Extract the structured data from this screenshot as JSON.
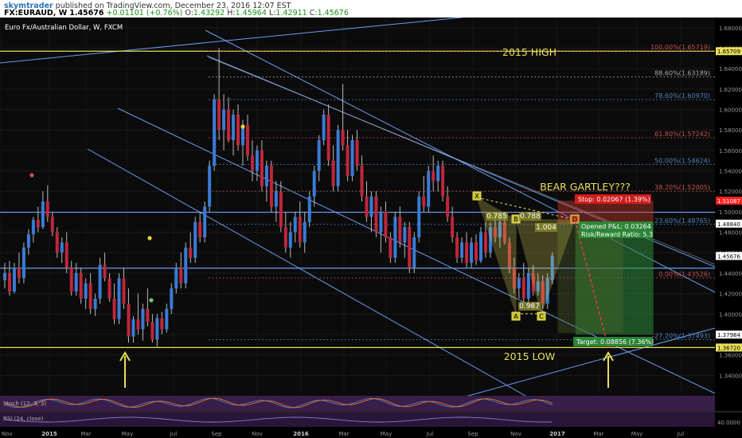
{
  "header": {
    "author": "skymtrader",
    "published_text": "published on TradingView.com, December 23, 2016 12:07 EST",
    "symbol": "FX:EURAUD, W",
    "last_price": "1.45676",
    "change": "+0.01101 (+0.76%)",
    "ohlc": {
      "o_label": "O:",
      "o": "1.43292",
      "h_label": "H:",
      "h": "1.45964",
      "l_label": "L:",
      "l": "1.42911",
      "c_label": "C:",
      "c": "1.45676"
    }
  },
  "chart_data": {
    "type": "candlestick",
    "title": "Euro Fx/Australian Dollar, W, FXCM",
    "x_tick_labels": [
      "Nov",
      "2015",
      "Mar",
      "May",
      "Jul",
      "Sep",
      "Nov",
      "2016",
      "Mar",
      "May",
      "Jul",
      "Sep",
      "Nov",
      "2017",
      "Mar",
      "May",
      "Jul"
    ],
    "y_tick_labels": [
      "1.68000",
      "1.66000",
      "1.64000",
      "1.62000",
      "1.60000",
      "1.58000",
      "1.56000",
      "1.54000",
      "1.52000",
      "1.50000",
      "1.48000",
      "1.46000",
      "1.44000",
      "1.42000",
      "1.40000",
      "1.38000",
      "1.36000",
      "1.34000"
    ],
    "ylim": [
      1.32,
      1.69
    ],
    "price_tags": [
      {
        "value": 1.65709,
        "label": "1.65709",
        "color": "#e8e05a"
      },
      {
        "value": 1.51087,
        "label": "1.51087",
        "color": "#ff2020"
      },
      {
        "value": 1.4884,
        "label": "1.48840",
        "color": "#ffffff"
      },
      {
        "value": 1.45676,
        "label": "1.45676",
        "color": "#ffffff"
      },
      {
        "value": 1.37984,
        "label": "1.37984",
        "color": "#ffffff"
      },
      {
        "value": 1.3672,
        "label": "1.36720",
        "color": "#e8e05a"
      }
    ],
    "fibonacci_levels": [
      {
        "label": "100.00%(1.65719)",
        "value": 1.65719,
        "color": "#c0504d"
      },
      {
        "label": "88.60%(1.63189)",
        "value": 1.63189,
        "color": "#aaaaaa"
      },
      {
        "label": "78.60%(1.60970)",
        "value": 1.6097,
        "color": "#4f81bd"
      },
      {
        "label": "61.80%(1.57242)",
        "value": 1.57242,
        "color": "#c0504d"
      },
      {
        "label": "50.00%(1.54624)",
        "value": 1.54624,
        "color": "#4f81bd"
      },
      {
        "label": "38.20%(1.52005)",
        "value": 1.52005,
        "color": "#c0504d"
      },
      {
        "label": "23.60%(1.48765)",
        "value": 1.48765,
        "color": "#4f81bd"
      },
      {
        "label": "0.00%(1.43526)",
        "value": 1.43526,
        "color": "#c0504d"
      },
      {
        "label": "-27.20%(1.37493)",
        "value": 1.37493,
        "color": "#4f81bd"
      }
    ],
    "horizontal_levels": [
      {
        "value": 1.65709,
        "color": "#e8e05a"
      },
      {
        "value": 1.4995,
        "color": "#6a9cf0"
      },
      {
        "value": 1.4448,
        "color": "#6a9cf0"
      },
      {
        "value": 1.3672,
        "color": "#e8e05a"
      }
    ],
    "annotations": {
      "high_label": "2015 HIGH",
      "low_label": "2015 LOW",
      "pattern_label": "BEAR GARTLEY???",
      "stop_label": "Stop: 0.02067 (1.39%)",
      "open_pl": "Opened P&L: 0.03264",
      "risk_reward": "Risk/Reward Ratio: 5.3",
      "target_label": "Target: 0.08856 (7.36%)",
      "harmonic_points": {
        "x": "X",
        "a": "A",
        "b": "B",
        "c": "C",
        "d": "D"
      },
      "ratios": {
        "xab": "0.785",
        "abc": "0.987",
        "xad": "0.788",
        "bcd": "1.004"
      }
    },
    "candles": [
      {
        "t": 0,
        "o": 1.433,
        "h": 1.45,
        "l": 1.425,
        "c": 1.44
      },
      {
        "t": 1,
        "o": 1.44,
        "h": 1.452,
        "l": 1.418,
        "c": 1.422
      },
      {
        "t": 2,
        "o": 1.422,
        "h": 1.45,
        "l": 1.42,
        "c": 1.445
      },
      {
        "t": 3,
        "o": 1.445,
        "h": 1.46,
        "l": 1.43,
        "c": 1.435
      },
      {
        "t": 4,
        "o": 1.435,
        "h": 1.47,
        "l": 1.43,
        "c": 1.465
      },
      {
        "t": 5,
        "o": 1.465,
        "h": 1.483,
        "l": 1.458,
        "c": 1.478
      },
      {
        "t": 6,
        "o": 1.478,
        "h": 1.495,
        "l": 1.47,
        "c": 1.492
      },
      {
        "t": 7,
        "o": 1.492,
        "h": 1.505,
        "l": 1.48,
        "c": 1.485
      },
      {
        "t": 8,
        "o": 1.485,
        "h": 1.52,
        "l": 1.483,
        "c": 1.51
      },
      {
        "t": 9,
        "o": 1.51,
        "h": 1.526,
        "l": 1.49,
        "c": 1.495
      },
      {
        "t": 10,
        "o": 1.495,
        "h": 1.5,
        "l": 1.476,
        "c": 1.48
      },
      {
        "t": 11,
        "o": 1.48,
        "h": 1.485,
        "l": 1.455,
        "c": 1.46
      },
      {
        "t": 12,
        "o": 1.46,
        "h": 1.475,
        "l": 1.45,
        "c": 1.47
      },
      {
        "t": 13,
        "o": 1.47,
        "h": 1.48,
        "l": 1.44,
        "c": 1.445
      },
      {
        "t": 14,
        "o": 1.445,
        "h": 1.452,
        "l": 1.418,
        "c": 1.422
      },
      {
        "t": 15,
        "o": 1.422,
        "h": 1.45,
        "l": 1.418,
        "c": 1.44
      },
      {
        "t": 16,
        "o": 1.44,
        "h": 1.445,
        "l": 1.41,
        "c": 1.415
      },
      {
        "t": 17,
        "o": 1.415,
        "h": 1.435,
        "l": 1.405,
        "c": 1.43
      },
      {
        "t": 18,
        "o": 1.43,
        "h": 1.44,
        "l": 1.4,
        "c": 1.405
      },
      {
        "t": 19,
        "o": 1.405,
        "h": 1.42,
        "l": 1.398,
        "c": 1.415
      },
      {
        "t": 20,
        "o": 1.415,
        "h": 1.455,
        "l": 1.41,
        "c": 1.448
      },
      {
        "t": 21,
        "o": 1.448,
        "h": 1.46,
        "l": 1.432,
        "c": 1.435
      },
      {
        "t": 22,
        "o": 1.435,
        "h": 1.44,
        "l": 1.412,
        "c": 1.415
      },
      {
        "t": 23,
        "o": 1.415,
        "h": 1.43,
        "l": 1.39,
        "c": 1.395
      },
      {
        "t": 24,
        "o": 1.395,
        "h": 1.44,
        "l": 1.39,
        "c": 1.435
      },
      {
        "t": 25,
        "o": 1.435,
        "h": 1.445,
        "l": 1.405,
        "c": 1.41
      },
      {
        "t": 26,
        "o": 1.41,
        "h": 1.425,
        "l": 1.372,
        "c": 1.378
      },
      {
        "t": 27,
        "o": 1.378,
        "h": 1.398,
        "l": 1.372,
        "c": 1.395
      },
      {
        "t": 28,
        "o": 1.395,
        "h": 1.42,
        "l": 1.38,
        "c": 1.385
      },
      {
        "t": 29,
        "o": 1.385,
        "h": 1.41,
        "l": 1.374,
        "c": 1.405
      },
      {
        "t": 30,
        "o": 1.405,
        "h": 1.425,
        "l": 1.388,
        "c": 1.392
      },
      {
        "t": 31,
        "o": 1.392,
        "h": 1.4,
        "l": 1.372,
        "c": 1.375
      },
      {
        "t": 32,
        "o": 1.375,
        "h": 1.4,
        "l": 1.368,
        "c": 1.396
      },
      {
        "t": 33,
        "o": 1.396,
        "h": 1.402,
        "l": 1.38,
        "c": 1.385
      },
      {
        "t": 34,
        "o": 1.385,
        "h": 1.41,
        "l": 1.382,
        "c": 1.405
      },
      {
        "t": 35,
        "o": 1.405,
        "h": 1.43,
        "l": 1.4,
        "c": 1.425
      },
      {
        "t": 36,
        "o": 1.425,
        "h": 1.45,
        "l": 1.42,
        "c": 1.445
      },
      {
        "t": 37,
        "o": 1.445,
        "h": 1.46,
        "l": 1.425,
        "c": 1.43
      },
      {
        "t": 38,
        "o": 1.43,
        "h": 1.47,
        "l": 1.425,
        "c": 1.465
      },
      {
        "t": 39,
        "o": 1.465,
        "h": 1.48,
        "l": 1.45,
        "c": 1.455
      },
      {
        "t": 40,
        "o": 1.455,
        "h": 1.495,
        "l": 1.45,
        "c": 1.49
      },
      {
        "t": 41,
        "o": 1.49,
        "h": 1.5,
        "l": 1.47,
        "c": 1.475
      },
      {
        "t": 42,
        "o": 1.475,
        "h": 1.51,
        "l": 1.47,
        "c": 1.505
      },
      {
        "t": 43,
        "o": 1.505,
        "h": 1.55,
        "l": 1.5,
        "c": 1.545
      },
      {
        "t": 44,
        "o": 1.545,
        "h": 1.615,
        "l": 1.54,
        "c": 1.61
      },
      {
        "t": 45,
        "o": 1.61,
        "h": 1.66,
        "l": 1.57,
        "c": 1.58
      },
      {
        "t": 46,
        "o": 1.58,
        "h": 1.615,
        "l": 1.56,
        "c": 1.6
      },
      {
        "t": 47,
        "o": 1.6,
        "h": 1.612,
        "l": 1.568,
        "c": 1.57
      },
      {
        "t": 48,
        "o": 1.57,
        "h": 1.6,
        "l": 1.555,
        "c": 1.595
      },
      {
        "t": 49,
        "o": 1.595,
        "h": 1.605,
        "l": 1.56,
        "c": 1.565
      },
      {
        "t": 50,
        "o": 1.565,
        "h": 1.59,
        "l": 1.545,
        "c": 1.585
      },
      {
        "t": 51,
        "o": 1.585,
        "h": 1.595,
        "l": 1.55,
        "c": 1.555
      },
      {
        "t": 52,
        "o": 1.555,
        "h": 1.57,
        "l": 1.53,
        "c": 1.54
      },
      {
        "t": 53,
        "o": 1.54,
        "h": 1.565,
        "l": 1.53,
        "c": 1.56
      },
      {
        "t": 54,
        "o": 1.56,
        "h": 1.57,
        "l": 1.52,
        "c": 1.525
      },
      {
        "t": 55,
        "o": 1.525,
        "h": 1.55,
        "l": 1.51,
        "c": 1.545
      },
      {
        "t": 56,
        "o": 1.545,
        "h": 1.55,
        "l": 1.5,
        "c": 1.505
      },
      {
        "t": 57,
        "o": 1.505,
        "h": 1.53,
        "l": 1.49,
        "c": 1.52
      },
      {
        "t": 58,
        "o": 1.52,
        "h": 1.53,
        "l": 1.48,
        "c": 1.485
      },
      {
        "t": 59,
        "o": 1.485,
        "h": 1.5,
        "l": 1.46,
        "c": 1.465
      },
      {
        "t": 60,
        "o": 1.465,
        "h": 1.49,
        "l": 1.455,
        "c": 1.48
      },
      {
        "t": 61,
        "o": 1.48,
        "h": 1.5,
        "l": 1.47,
        "c": 1.495
      },
      {
        "t": 62,
        "o": 1.495,
        "h": 1.51,
        "l": 1.465,
        "c": 1.47
      },
      {
        "t": 63,
        "o": 1.47,
        "h": 1.5,
        "l": 1.46,
        "c": 1.49
      },
      {
        "t": 64,
        "o": 1.49,
        "h": 1.52,
        "l": 1.485,
        "c": 1.515
      },
      {
        "t": 65,
        "o": 1.515,
        "h": 1.545,
        "l": 1.505,
        "c": 1.54
      },
      {
        "t": 66,
        "o": 1.54,
        "h": 1.575,
        "l": 1.53,
        "c": 1.57
      },
      {
        "t": 67,
        "o": 1.57,
        "h": 1.6,
        "l": 1.565,
        "c": 1.595
      },
      {
        "t": 68,
        "o": 1.595,
        "h": 1.605,
        "l": 1.545,
        "c": 1.55
      },
      {
        "t": 69,
        "o": 1.55,
        "h": 1.565,
        "l": 1.52,
        "c": 1.525
      },
      {
        "t": 70,
        "o": 1.525,
        "h": 1.585,
        "l": 1.52,
        "c": 1.58
      },
      {
        "t": 71,
        "o": 1.58,
        "h": 1.625,
        "l": 1.56,
        "c": 1.565
      },
      {
        "t": 72,
        "o": 1.565,
        "h": 1.58,
        "l": 1.53,
        "c": 1.535
      },
      {
        "t": 73,
        "o": 1.535,
        "h": 1.575,
        "l": 1.53,
        "c": 1.57
      },
      {
        "t": 74,
        "o": 1.57,
        "h": 1.58,
        "l": 1.54,
        "c": 1.545
      },
      {
        "t": 75,
        "o": 1.545,
        "h": 1.555,
        "l": 1.51,
        "c": 1.515
      },
      {
        "t": 76,
        "o": 1.515,
        "h": 1.53,
        "l": 1.49,
        "c": 1.495
      },
      {
        "t": 77,
        "o": 1.495,
        "h": 1.52,
        "l": 1.48,
        "c": 1.515
      },
      {
        "t": 78,
        "o": 1.515,
        "h": 1.52,
        "l": 1.475,
        "c": 1.48
      },
      {
        "t": 79,
        "o": 1.48,
        "h": 1.505,
        "l": 1.46,
        "c": 1.5
      },
      {
        "t": 80,
        "o": 1.5,
        "h": 1.51,
        "l": 1.47,
        "c": 1.475
      },
      {
        "t": 81,
        "o": 1.475,
        "h": 1.48,
        "l": 1.45,
        "c": 1.455
      },
      {
        "t": 82,
        "o": 1.455,
        "h": 1.5,
        "l": 1.45,
        "c": 1.495
      },
      {
        "t": 83,
        "o": 1.495,
        "h": 1.505,
        "l": 1.465,
        "c": 1.47
      },
      {
        "t": 84,
        "o": 1.47,
        "h": 1.49,
        "l": 1.455,
        "c": 1.485
      },
      {
        "t": 85,
        "o": 1.485,
        "h": 1.49,
        "l": 1.44,
        "c": 1.445
      },
      {
        "t": 86,
        "o": 1.445,
        "h": 1.48,
        "l": 1.44,
        "c": 1.475
      },
      {
        "t": 87,
        "o": 1.475,
        "h": 1.52,
        "l": 1.47,
        "c": 1.515
      },
      {
        "t": 88,
        "o": 1.515,
        "h": 1.535,
        "l": 1.5,
        "c": 1.505
      },
      {
        "t": 89,
        "o": 1.505,
        "h": 1.545,
        "l": 1.5,
        "c": 1.54
      },
      {
        "t": 90,
        "o": 1.54,
        "h": 1.555,
        "l": 1.52,
        "c": 1.53
      },
      {
        "t": 91,
        "o": 1.53,
        "h": 1.55,
        "l": 1.52,
        "c": 1.545
      },
      {
        "t": 92,
        "o": 1.545,
        "h": 1.55,
        "l": 1.51,
        "c": 1.515
      },
      {
        "t": 93,
        "o": 1.515,
        "h": 1.525,
        "l": 1.49,
        "c": 1.495
      },
      {
        "t": 94,
        "o": 1.495,
        "h": 1.505,
        "l": 1.47,
        "c": 1.475
      },
      {
        "t": 95,
        "o": 1.475,
        "h": 1.48,
        "l": 1.45,
        "c": 1.455
      },
      {
        "t": 96,
        "o": 1.455,
        "h": 1.475,
        "l": 1.45,
        "c": 1.47
      },
      {
        "t": 97,
        "o": 1.47,
        "h": 1.48,
        "l": 1.445,
        "c": 1.45
      },
      {
        "t": 98,
        "o": 1.45,
        "h": 1.475,
        "l": 1.445,
        "c": 1.47
      },
      {
        "t": 99,
        "o": 1.47,
        "h": 1.478,
        "l": 1.448,
        "c": 1.452
      },
      {
        "t": 100,
        "o": 1.452,
        "h": 1.485,
        "l": 1.45,
        "c": 1.48
      },
      {
        "t": 101,
        "o": 1.48,
        "h": 1.49,
        "l": 1.455,
        "c": 1.46
      },
      {
        "t": 102,
        "o": 1.46,
        "h": 1.49,
        "l": 1.455,
        "c": 1.485
      },
      {
        "t": 103,
        "o": 1.485,
        "h": 1.5,
        "l": 1.47,
        "c": 1.475
      },
      {
        "t": 104,
        "o": 1.475,
        "h": 1.495,
        "l": 1.465,
        "c": 1.49
      },
      {
        "t": 105,
        "o": 1.49,
        "h": 1.5,
        "l": 1.468,
        "c": 1.47
      },
      {
        "t": 106,
        "o": 1.47,
        "h": 1.475,
        "l": 1.44,
        "c": 1.445
      },
      {
        "t": 107,
        "o": 1.445,
        "h": 1.455,
        "l": 1.42,
        "c": 1.425
      },
      {
        "t": 108,
        "o": 1.425,
        "h": 1.44,
        "l": 1.415,
        "c": 1.435
      },
      {
        "t": 109,
        "o": 1.435,
        "h": 1.45,
        "l": 1.41,
        "c": 1.415
      },
      {
        "t": 110,
        "o": 1.415,
        "h": 1.445,
        "l": 1.41,
        "c": 1.44
      },
      {
        "t": 111,
        "o": 1.44,
        "h": 1.448,
        "l": 1.418,
        "c": 1.422
      },
      {
        "t": 112,
        "o": 1.422,
        "h": 1.44,
        "l": 1.418,
        "c": 1.432
      },
      {
        "t": 113,
        "o": 1.432,
        "h": 1.438,
        "l": 1.405,
        "c": 1.41
      },
      {
        "t": 114,
        "o": 1.41,
        "h": 1.44,
        "l": 1.405,
        "c": 1.435
      },
      {
        "t": 115,
        "o": 1.433,
        "h": 1.46,
        "l": 1.429,
        "c": 1.457
      }
    ]
  },
  "indicators": {
    "stoch_label": "Stoch (12, 3, 3)",
    "rsi_label": "RSI (24, close)",
    "rsi_tick": "40.0000"
  }
}
